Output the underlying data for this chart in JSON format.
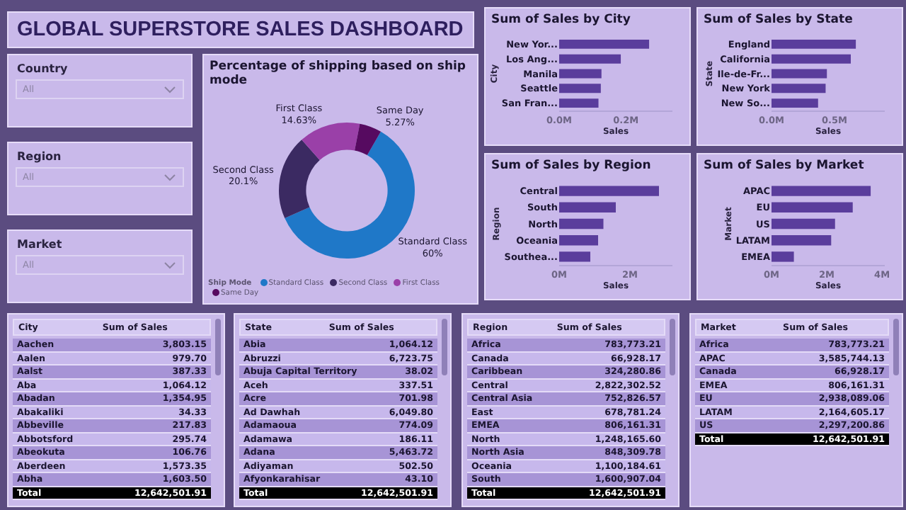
{
  "chart_data": [
    {
      "type": "other",
      "title": "GLOBAL SUPERSTORE SALES DASHBOARD"
    },
    {
      "type": "other",
      "title": "Country",
      "annotations": [
        "All"
      ]
    },
    {
      "type": "other",
      "title": "Region",
      "annotations": [
        "All"
      ]
    },
    {
      "type": "other",
      "title": "Market",
      "annotations": [
        "All"
      ]
    },
    {
      "type": "donut",
      "title": "Percentage of shipping based on ship mode",
      "legend_title": "Ship Mode",
      "legend": "bottom",
      "categories": [
        "Standard Class",
        "Second Class",
        "First Class",
        "Same Day"
      ],
      "values": [
        60,
        20.1,
        14.63,
        5.27
      ],
      "value_labels": [
        "60%",
        "20.1%",
        "14.63%",
        "5.27%"
      ],
      "colors": [
        "#1f78c8",
        "#3b2a62",
        "#9a40a8",
        "#560a60"
      ]
    },
    {
      "type": "bar",
      "orientation": "horizontal",
      "title": "Sum of Sales by City",
      "xlabel": "Sales",
      "ylabel": "City",
      "categories": [
        "New Yor...",
        "Los Ang...",
        "Manila",
        "Seattle",
        "San Fran..."
      ],
      "values": [
        270000,
        185000,
        127000,
        125000,
        118000
      ],
      "color": "#5a3d9c",
      "xlim": [
        0,
        340000
      ],
      "xticks": [
        {
          "value": 0,
          "label": "0.0M"
        },
        {
          "value": 200000,
          "label": "0.2M"
        }
      ]
    },
    {
      "type": "bar",
      "orientation": "horizontal",
      "title": "Sum of Sales by State",
      "xlabel": "Sales",
      "ylabel": "State",
      "categories": [
        "England",
        "California",
        "Ile-de-Fr...",
        "New York",
        "New So..."
      ],
      "values": [
        670000,
        630000,
        440000,
        430000,
        370000
      ],
      "color": "#5a3d9c",
      "xlim": [
        0,
        900000
      ],
      "xticks": [
        {
          "value": 0,
          "label": "0.0M"
        },
        {
          "value": 500000,
          "label": "0.5M"
        }
      ]
    },
    {
      "type": "bar",
      "orientation": "horizontal",
      "title": "Sum of Sales by Region",
      "xlabel": "Sales",
      "ylabel": "Region",
      "categories": [
        "Central",
        "South",
        "North",
        "Oceania",
        "Southea..."
      ],
      "values": [
        2820000,
        1600000,
        1250000,
        1100000,
        880000
      ],
      "color": "#5a3d9c",
      "xlim": [
        0,
        3200000
      ],
      "xticks": [
        {
          "value": 0,
          "label": "0M"
        },
        {
          "value": 2000000,
          "label": "2M"
        }
      ]
    },
    {
      "type": "bar",
      "orientation": "horizontal",
      "title": "Sum of Sales by Market",
      "xlabel": "Sales",
      "ylabel": "Market",
      "categories": [
        "APAC",
        "EU",
        "US",
        "LATAM",
        "EMEA"
      ],
      "values": [
        3590000,
        2940000,
        2300000,
        2160000,
        810000
      ],
      "color": "#5a3d9c",
      "xlim": [
        0,
        4100000
      ],
      "xticks": [
        {
          "value": 0,
          "label": "0M"
        },
        {
          "value": 2000000,
          "label": "2M"
        },
        {
          "value": 4000000,
          "label": "4M"
        }
      ]
    },
    {
      "type": "other",
      "xlabel": "City",
      "ylabel": "Sum of Sales",
      "categories": [
        "Aachen",
        "Aalen",
        "Aalst",
        "Aba",
        "Abadan",
        "Abakaliki",
        "Abbeville",
        "Abbotsford",
        "Abeokuta",
        "Aberdeen",
        "Abha"
      ],
      "value_labels": [
        "3,803.15",
        "979.70",
        "387.33",
        "1,064.12",
        "1,354.95",
        "34.33",
        "217.83",
        "295.74",
        "106.76",
        "1,573.35",
        "1,603.50"
      ],
      "annotations": [
        "Total"
      ],
      "totals": [
        "12,642,501.91"
      ]
    },
    {
      "type": "other",
      "xlabel": "State",
      "ylabel": "Sum of Sales",
      "categories": [
        "Abia",
        "Abruzzi",
        "Abuja Capital Territory",
        "Aceh",
        "Acre",
        "Ad Dawhah",
        "Adamaoua",
        "Adamawa",
        "Adana",
        "Adiyaman",
        "Afyonkarahisar"
      ],
      "value_labels": [
        "1,064.12",
        "6,723.75",
        "38.02",
        "337.51",
        "701.98",
        "6,049.80",
        "774.09",
        "186.11",
        "5,463.72",
        "502.50",
        "43.10"
      ],
      "annotations": [
        "Total"
      ],
      "totals": [
        "12,642,501.91"
      ]
    },
    {
      "type": "other",
      "xlabel": "Region",
      "ylabel": "Sum of Sales",
      "categories": [
        "Africa",
        "Canada",
        "Caribbean",
        "Central",
        "Central Asia",
        "East",
        "EMEA",
        "North",
        "North Asia",
        "Oceania",
        "South"
      ],
      "value_labels": [
        "783,773.21",
        "66,928.17",
        "324,280.86",
        "2,822,302.52",
        "752,826.57",
        "678,781.24",
        "806,161.31",
        "1,248,165.60",
        "848,309.78",
        "1,100,184.61",
        "1,600,907.04"
      ],
      "annotations": [
        "Total"
      ],
      "totals": [
        "12,642,501.91"
      ]
    },
    {
      "type": "other",
      "xlabel": "Market",
      "ylabel": "Sum of Sales",
      "categories": [
        "Africa",
        "APAC",
        "Canada",
        "EMEA",
        "EU",
        "LATAM",
        "US"
      ],
      "value_labels": [
        "783,773.21",
        "3,585,744.13",
        "66,928.17",
        "806,161.31",
        "2,938,089.06",
        "2,164,605.17",
        "2,297,200.86"
      ],
      "annotations": [
        "Total"
      ],
      "totals": [
        "12,642,501.91"
      ]
    }
  ]
}
